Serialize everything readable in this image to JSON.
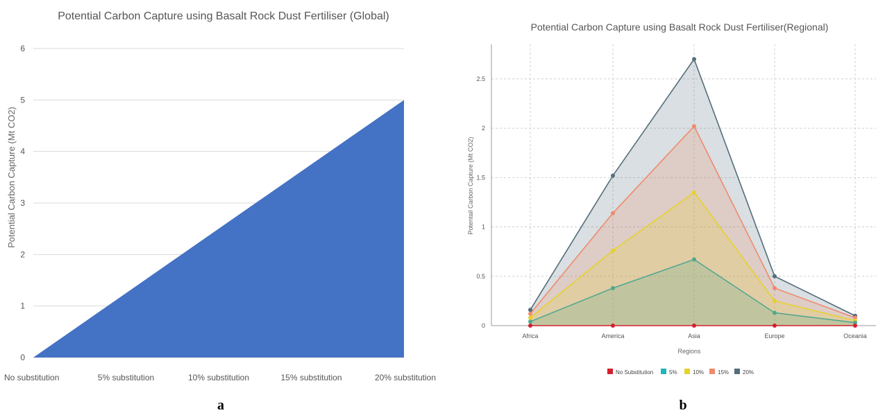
{
  "chart_data": [
    {
      "panel_label": "a",
      "type": "area",
      "title": "Potential Carbon Capture using Basalt Rock Dust Fertiliser (Global)",
      "xlabel": "",
      "ylabel": "Potential Carbon Capture (Mt CO2)",
      "categories": [
        "No substitution",
        "5% substitution",
        "10% substitution",
        "15% substitution",
        "20%  substitution"
      ],
      "y_ticks": [
        "0",
        "1",
        "2",
        "3",
        "4",
        "5",
        "6"
      ],
      "ylim": [
        0,
        6
      ],
      "grid": true,
      "series": [
        {
          "values": [
            0,
            1.25,
            2.5,
            3.75,
            5
          ],
          "color": "#4472C4"
        }
      ]
    },
    {
      "panel_label": "b",
      "type": "area",
      "title": "Potential Carbon Capture using Basalt Rock Dust Fertiliser(Regional)",
      "xlabel": "Regions",
      "ylabel": "Potentail Carbon Capture (Mt CO2)",
      "categories": [
        "Africa",
        "America",
        "Asia",
        "Europe",
        "Oceania"
      ],
      "y_ticks": [
        "0",
        "0.5",
        "1",
        "1.5",
        "2",
        "2.5"
      ],
      "ylim": [
        0,
        2.85
      ],
      "grid": true,
      "legend_position": "bottom",
      "series": [
        {
          "name": "20%",
          "values": [
            0.16,
            1.52,
            2.7,
            0.5,
            0.1
          ],
          "color": "#546E7A"
        },
        {
          "name": "15%",
          "values": [
            0.12,
            1.14,
            2.02,
            0.38,
            0.08
          ],
          "color": "#F08A6B"
        },
        {
          "name": "10%",
          "values": [
            0.08,
            0.76,
            1.35,
            0.25,
            0.05
          ],
          "color": "#E6D22A"
        },
        {
          "name": "5%",
          "values": [
            0.04,
            0.38,
            0.67,
            0.13,
            0.03
          ],
          "color": "#53A88F"
        },
        {
          "name": "No Substitution",
          "values": [
            0,
            0,
            0,
            0,
            0
          ],
          "color": "#D3202F"
        }
      ],
      "legend": [
        {
          "name": "No Substitution",
          "color": "#D3202F"
        },
        {
          "name": "5%",
          "color": "#22B5B5"
        },
        {
          "name": "10%",
          "color": "#E6D22A"
        },
        {
          "name": "15%",
          "color": "#F08A6B"
        },
        {
          "name": "20%",
          "color": "#546E7A"
        }
      ]
    }
  ]
}
